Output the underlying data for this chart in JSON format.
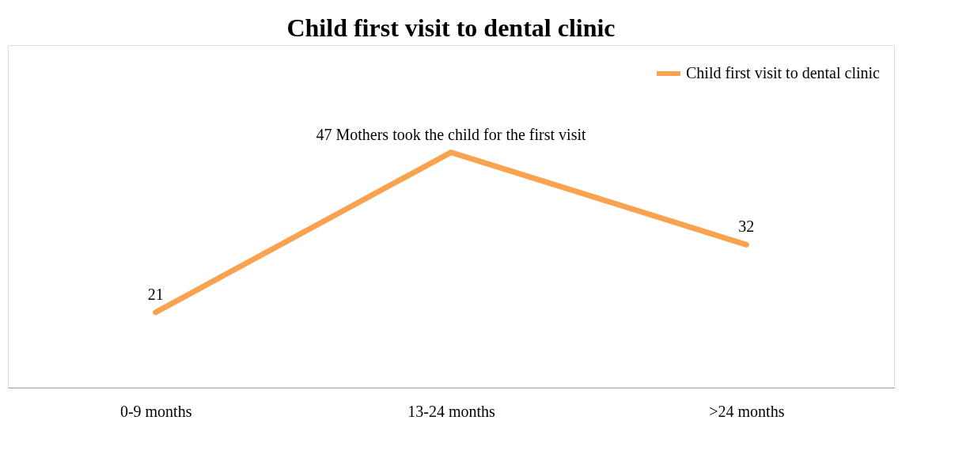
{
  "chart_data": {
    "type": "line",
    "title": "Child first visit to dental clinic",
    "categories": [
      "0-9 months",
      "13-24 months",
      ">24 months"
    ],
    "series": [
      {
        "name": "Child first visit to dental clinic",
        "color": "#f9a350",
        "values": [
          21,
          47,
          32
        ],
        "value_labels": [
          "21",
          "47 Mothers took the child for the first visit",
          "32"
        ]
      }
    ],
    "legend": "top right",
    "grid": false,
    "marker": "none",
    "line_style": "solid"
  }
}
